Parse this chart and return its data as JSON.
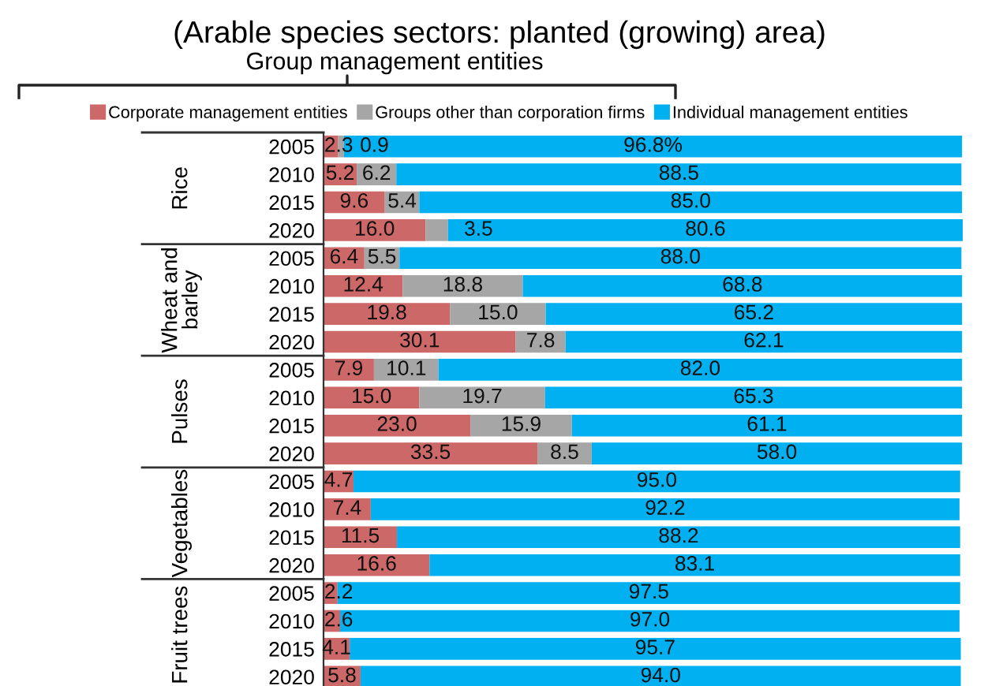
{
  "chart_data": {
    "type": "bar",
    "orientation": "horizontal",
    "stacked": true,
    "title": "(Arable species sectors: planted (growing) area)",
    "annotations": [
      "Group management entities",
      "Rice",
      "Wheat and\nbarley",
      "Pulses",
      "Vegetables",
      "Fruit trees"
    ],
    "categories": [
      "2005",
      "2010",
      "2015",
      "2020",
      "2005",
      "2010",
      "2015",
      "2020",
      "2005",
      "2010",
      "2015",
      "2020",
      "2005",
      "2010",
      "2015",
      "2020",
      "2005",
      "2010",
      "2015",
      "2020"
    ],
    "series": [
      {
        "name": "Corporate management entities",
        "color": "#cd6868",
        "values": [
          2.3,
          5.2,
          9.6,
          16.0,
          6.4,
          12.4,
          19.8,
          30.1,
          7.9,
          15.0,
          23.0,
          33.5,
          4.7,
          7.4,
          11.5,
          16.6,
          2.2,
          2.6,
          4.1,
          5.8
        ],
        "value_labels": [
          "2.3",
          "5.2",
          "9.6",
          "16.0",
          "6.4",
          "12.4",
          "19.8",
          "30.1",
          "7.9",
          "15.0",
          "23.0",
          "33.5",
          "4.7",
          "7.4",
          "11.5",
          "16.6",
          "2.2",
          "2.6",
          "4.1",
          "5.8"
        ]
      },
      {
        "name": "Groups other than corporation firms",
        "color": "#a6a6a6",
        "values": [
          0.9,
          6.2,
          5.4,
          3.5,
          5.5,
          18.8,
          15.0,
          7.8,
          10.1,
          19.7,
          15.9,
          8.5,
          null,
          null,
          null,
          null,
          null,
          null,
          null,
          null
        ],
        "value_labels": [
          "0.9",
          "6.2",
          "5.4",
          "3.5",
          "5.5",
          "18.8",
          "15.0",
          "7.8",
          "10.1",
          "19.7",
          "15.9",
          "8.5",
          null,
          null,
          null,
          null,
          null,
          null,
          null,
          null
        ]
      },
      {
        "name": "Individual management entities",
        "color": "#00b0f0",
        "values": [
          96.8,
          88.5,
          85.0,
          80.6,
          88.0,
          68.8,
          65.2,
          62.1,
          82.0,
          65.3,
          61.1,
          58.0,
          95.0,
          92.2,
          88.2,
          83.1,
          97.5,
          97.0,
          95.7,
          94.0
        ],
        "value_labels": [
          "96.8%",
          "88.5",
          "85.0",
          "80.6",
          "88.0",
          "68.8",
          "65.2",
          "62.1",
          "82.0",
          "65.3",
          "61.1",
          "58.0",
          "95.0",
          "92.2",
          "88.2",
          "83.1",
          "97.5",
          "97.0",
          "95.7",
          "94.0"
        ]
      }
    ],
    "legend": "top",
    "grid": false
  }
}
